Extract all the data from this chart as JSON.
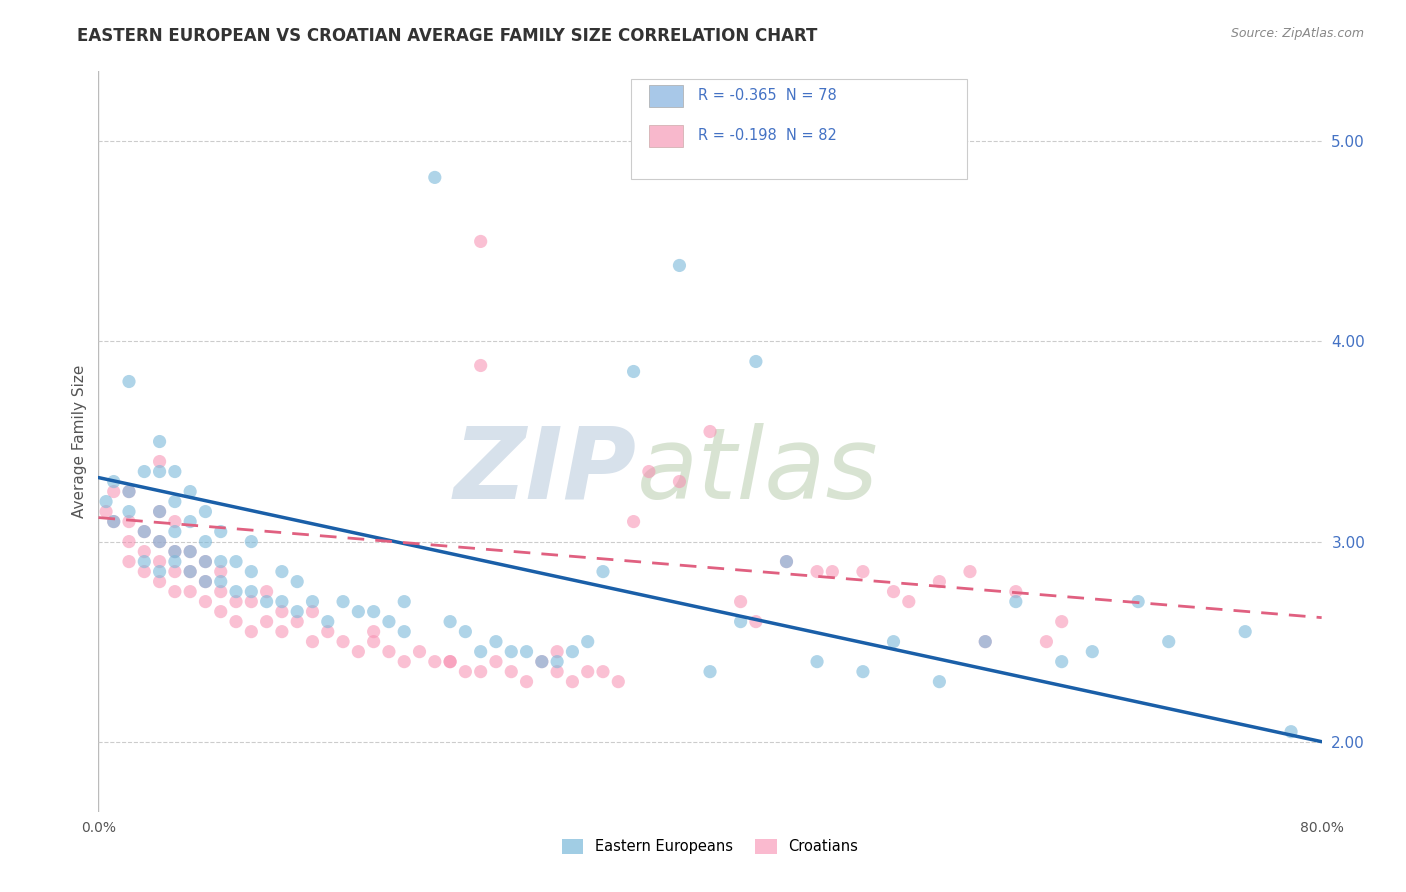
{
  "title": "EASTERN EUROPEAN VS CROATIAN AVERAGE FAMILY SIZE CORRELATION CHART",
  "source_text": "Source: ZipAtlas.com",
  "ylabel": "Average Family Size",
  "xlim": [
    0.0,
    0.8
  ],
  "ylim": [
    1.65,
    5.35
  ],
  "xticks": [
    0.0,
    0.1,
    0.2,
    0.3,
    0.4,
    0.5,
    0.6,
    0.7,
    0.8
  ],
  "xticklabels": [
    "0.0%",
    "",
    "",
    "",
    "",
    "",
    "",
    "",
    "80.0%"
  ],
  "yticks_right": [
    2.0,
    3.0,
    4.0,
    5.0
  ],
  "background_color": "#ffffff",
  "grid_color": "#cccccc",
  "watermark_zip": "ZIP",
  "watermark_atlas": "atlas",
  "eastern_european_color": "#7ab8d9",
  "croatian_color": "#f78db0",
  "trend_ee_color": "#1a5fa8",
  "trend_cr_color": "#e06080",
  "ee_trend_y0": 3.32,
  "ee_trend_y1": 2.0,
  "cr_trend_y0": 3.12,
  "cr_trend_y1": 2.62,
  "ee_scatter_x": [
    0.005,
    0.01,
    0.01,
    0.02,
    0.02,
    0.02,
    0.03,
    0.03,
    0.03,
    0.04,
    0.04,
    0.04,
    0.04,
    0.04,
    0.05,
    0.05,
    0.05,
    0.05,
    0.05,
    0.06,
    0.06,
    0.06,
    0.06,
    0.07,
    0.07,
    0.07,
    0.07,
    0.08,
    0.08,
    0.08,
    0.09,
    0.09,
    0.1,
    0.1,
    0.1,
    0.11,
    0.12,
    0.12,
    0.13,
    0.13,
    0.14,
    0.15,
    0.16,
    0.17,
    0.18,
    0.19,
    0.2,
    0.2,
    0.22,
    0.23,
    0.24,
    0.25,
    0.26,
    0.27,
    0.28,
    0.29,
    0.3,
    0.31,
    0.32,
    0.33,
    0.35,
    0.38,
    0.4,
    0.42,
    0.43,
    0.45,
    0.47,
    0.5,
    0.52,
    0.55,
    0.58,
    0.6,
    0.63,
    0.65,
    0.68,
    0.7,
    0.75,
    0.78
  ],
  "ee_scatter_y": [
    3.2,
    3.1,
    3.3,
    3.15,
    3.25,
    3.8,
    2.9,
    3.05,
    3.35,
    2.85,
    3.0,
    3.15,
    3.35,
    3.5,
    2.9,
    2.95,
    3.05,
    3.2,
    3.35,
    2.85,
    2.95,
    3.1,
    3.25,
    2.8,
    2.9,
    3.0,
    3.15,
    2.8,
    2.9,
    3.05,
    2.75,
    2.9,
    2.75,
    2.85,
    3.0,
    2.7,
    2.7,
    2.85,
    2.65,
    2.8,
    2.7,
    2.6,
    2.7,
    2.65,
    2.65,
    2.6,
    2.55,
    2.7,
    4.82,
    2.6,
    2.55,
    2.45,
    2.5,
    2.45,
    2.45,
    2.4,
    2.4,
    2.45,
    2.5,
    2.85,
    3.85,
    4.38,
    2.35,
    2.6,
    3.9,
    2.9,
    2.4,
    2.35,
    2.5,
    2.3,
    2.5,
    2.7,
    2.4,
    2.45,
    2.7,
    2.5,
    2.55,
    2.05
  ],
  "cr_scatter_x": [
    0.005,
    0.01,
    0.01,
    0.02,
    0.02,
    0.02,
    0.02,
    0.03,
    0.03,
    0.03,
    0.04,
    0.04,
    0.04,
    0.04,
    0.04,
    0.05,
    0.05,
    0.05,
    0.05,
    0.06,
    0.06,
    0.06,
    0.07,
    0.07,
    0.07,
    0.08,
    0.08,
    0.08,
    0.09,
    0.09,
    0.1,
    0.1,
    0.11,
    0.11,
    0.12,
    0.12,
    0.13,
    0.14,
    0.14,
    0.15,
    0.16,
    0.17,
    0.18,
    0.19,
    0.2,
    0.21,
    0.22,
    0.23,
    0.24,
    0.25,
    0.26,
    0.27,
    0.28,
    0.29,
    0.3,
    0.31,
    0.32,
    0.34,
    0.35,
    0.36,
    0.38,
    0.4,
    0.43,
    0.45,
    0.48,
    0.5,
    0.52,
    0.55,
    0.57,
    0.6,
    0.62,
    0.18,
    0.23,
    0.25,
    0.3,
    0.33,
    0.42,
    0.47,
    0.53,
    0.58,
    0.63,
    0.25
  ],
  "cr_scatter_y": [
    3.15,
    3.1,
    3.25,
    2.9,
    3.0,
    3.1,
    3.25,
    2.85,
    2.95,
    3.05,
    2.8,
    2.9,
    3.0,
    3.15,
    3.4,
    2.75,
    2.85,
    2.95,
    3.1,
    2.75,
    2.85,
    2.95,
    2.7,
    2.8,
    2.9,
    2.65,
    2.75,
    2.85,
    2.6,
    2.7,
    2.55,
    2.7,
    2.6,
    2.75,
    2.55,
    2.65,
    2.6,
    2.5,
    2.65,
    2.55,
    2.5,
    2.45,
    2.5,
    2.45,
    2.4,
    2.45,
    2.4,
    2.4,
    2.35,
    2.35,
    2.4,
    2.35,
    2.3,
    2.4,
    2.35,
    2.3,
    2.35,
    2.3,
    3.1,
    3.35,
    3.3,
    3.55,
    2.6,
    2.9,
    2.85,
    2.85,
    2.75,
    2.8,
    2.85,
    2.75,
    2.5,
    2.55,
    2.4,
    4.5,
    2.45,
    2.35,
    2.7,
    2.85,
    2.7,
    2.5,
    2.6,
    3.88
  ],
  "title_fontsize": 12,
  "axis_label_fontsize": 11,
  "tick_fontsize": 10,
  "legend_blue_text": "R = -0.365  N = 78",
  "legend_pink_text": "R = -0.198  N = 82",
  "legend_blue_color": "#a8c8e8",
  "legend_pink_color": "#f8b8cc",
  "legend_text_color": "#4472c4"
}
